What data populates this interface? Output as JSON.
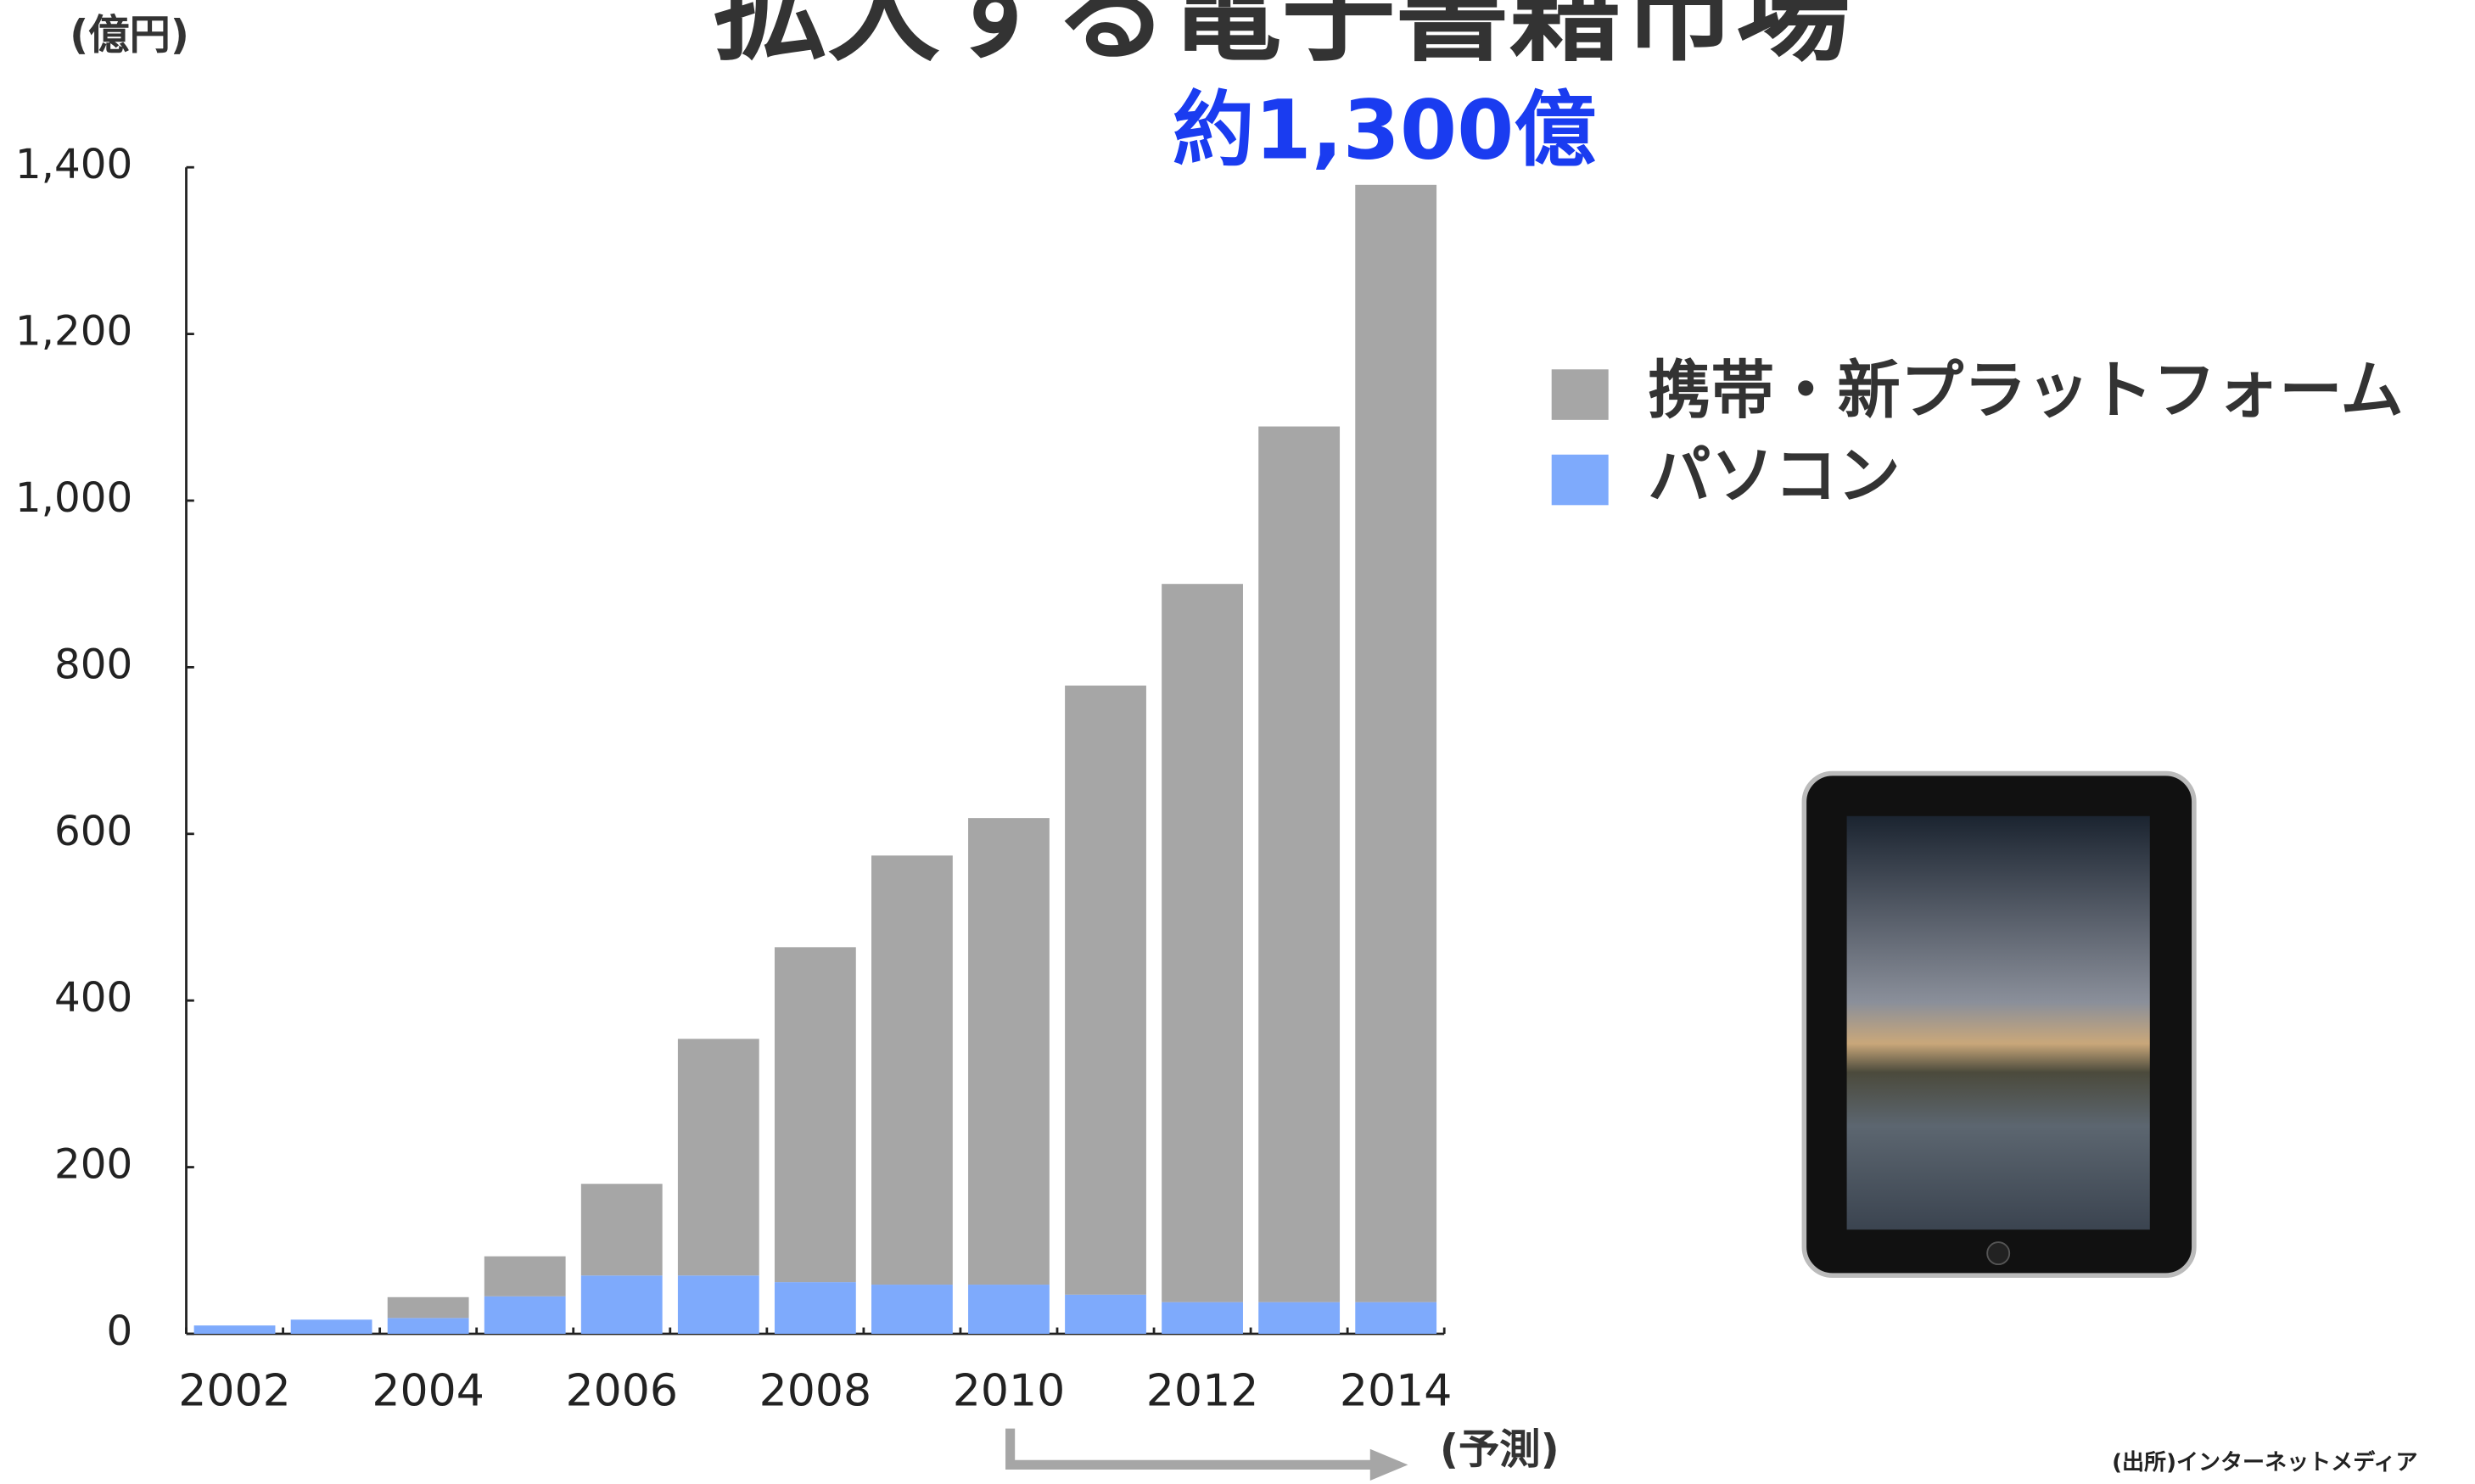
{
  "chart_data": {
    "type": "stacked-bar",
    "title": "拡大する電子書籍市場",
    "y_unit": "(億円)",
    "annotation": "約1,300億",
    "forecast_label": "(予測)",
    "source": "(出所)インターネットメディア",
    "categories": [
      "2002",
      null,
      "2004",
      null,
      "2006",
      null,
      "2008",
      null,
      "2010",
      null,
      "2012",
      null,
      "2014"
    ],
    "series": [
      {
        "name": "パソコン",
        "color": "#7eaafc",
        "values": [
          10,
          17,
          19,
          45,
          70,
          70,
          62,
          59,
          59,
          47,
          38,
          38,
          38
        ]
      },
      {
        "name": "携帯・新プラットフォーム",
        "color": "#a6a6a6",
        "values": [
          0,
          0,
          25,
          48,
          110,
          284,
          402,
          515,
          560,
          731,
          862,
          1051,
          1341
        ]
      }
    ],
    "ylim": [
      0,
      1400
    ],
    "yticks": [
      0,
      200,
      400,
      600,
      800,
      {
        "value": 1000,
        "label": "1,000"
      },
      {
        "value": 1200,
        "label": "1,200"
      },
      {
        "value": 1400,
        "label": "1,400"
      }
    ]
  }
}
